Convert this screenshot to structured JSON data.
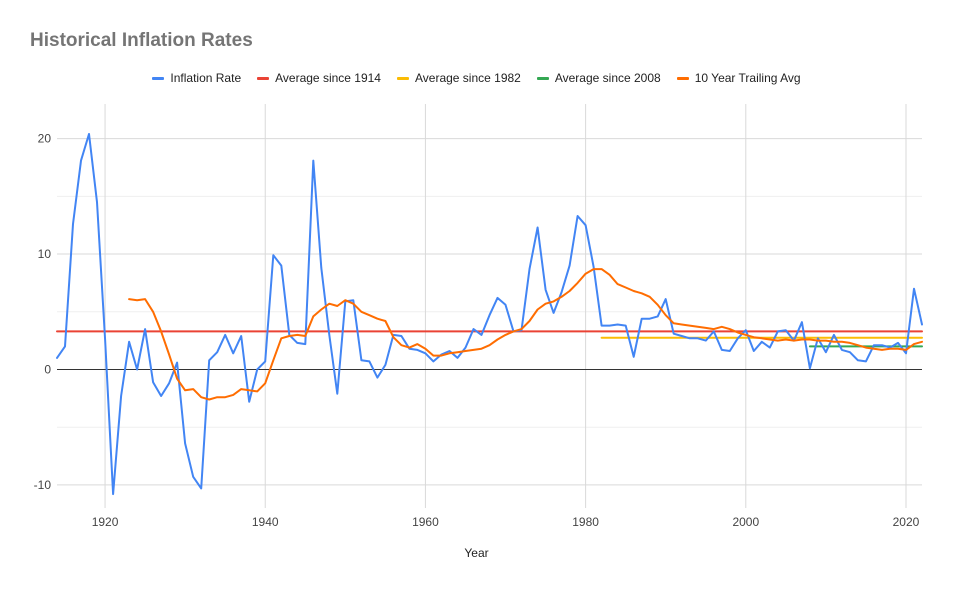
{
  "chart_data": {
    "type": "line",
    "title": "Historical Inflation Rates",
    "xlabel": "Year",
    "ylabel": "",
    "xlim": [
      1914,
      2022
    ],
    "ylim": [
      -12,
      23
    ],
    "x_ticks": [
      1920,
      1940,
      1960,
      1980,
      2000,
      2020
    ],
    "y_ticks": [
      -10,
      0,
      10,
      20
    ],
    "grid": true,
    "legend_position": "top",
    "series": [
      {
        "name": "Inflation Rate",
        "color": "#4285f4",
        "x": [
          1914,
          1915,
          1916,
          1917,
          1918,
          1919,
          1920,
          1921,
          1922,
          1923,
          1924,
          1925,
          1926,
          1927,
          1928,
          1929,
          1930,
          1931,
          1932,
          1933,
          1934,
          1935,
          1936,
          1937,
          1938,
          1939,
          1940,
          1941,
          1942,
          1943,
          1944,
          1945,
          1946,
          1947,
          1948,
          1949,
          1950,
          1951,
          1952,
          1953,
          1954,
          1955,
          1956,
          1957,
          1958,
          1959,
          1960,
          1961,
          1962,
          1963,
          1964,
          1965,
          1966,
          1967,
          1968,
          1969,
          1970,
          1971,
          1972,
          1973,
          1974,
          1975,
          1976,
          1977,
          1978,
          1979,
          1980,
          1981,
          1982,
          1983,
          1984,
          1985,
          1986,
          1987,
          1988,
          1989,
          1990,
          1991,
          1992,
          1993,
          1994,
          1995,
          1996,
          1997,
          1998,
          1999,
          2000,
          2001,
          2002,
          2003,
          2004,
          2005,
          2006,
          2007,
          2008,
          2009,
          2010,
          2011,
          2012,
          2013,
          2014,
          2015,
          2016,
          2017,
          2018,
          2019,
          2020,
          2021,
          2022
        ],
        "values": [
          1.0,
          2.0,
          12.6,
          18.1,
          20.4,
          14.5,
          2.6,
          -10.8,
          -2.3,
          2.4,
          0.0,
          3.5,
          -1.1,
          -2.3,
          -1.2,
          0.6,
          -6.4,
          -9.3,
          -10.3,
          0.8,
          1.5,
          3.0,
          1.4,
          2.9,
          -2.8,
          0.0,
          0.7,
          9.9,
          9.0,
          3.0,
          2.3,
          2.2,
          18.1,
          8.8,
          3.0,
          -2.1,
          5.9,
          6.0,
          0.8,
          0.7,
          -0.7,
          0.4,
          3.0,
          2.9,
          1.8,
          1.7,
          1.4,
          0.7,
          1.3,
          1.6,
          1.0,
          1.9,
          3.5,
          3.0,
          4.7,
          6.2,
          5.6,
          3.3,
          3.4,
          8.7,
          12.3,
          6.9,
          4.9,
          6.7,
          9.0,
          13.3,
          12.5,
          8.9,
          3.8,
          3.8,
          3.9,
          3.8,
          1.1,
          4.4,
          4.4,
          4.6,
          6.1,
          3.1,
          2.9,
          2.7,
          2.7,
          2.5,
          3.3,
          1.7,
          1.6,
          2.7,
          3.4,
          1.6,
          2.4,
          1.9,
          3.3,
          3.4,
          2.5,
          4.1,
          0.1,
          2.7,
          1.5,
          3.0,
          1.7,
          1.5,
          0.8,
          0.7,
          2.1,
          2.1,
          1.9,
          2.3,
          1.4,
          7.0,
          3.9
        ]
      },
      {
        "name": "Average since 1914",
        "color": "#ea4335",
        "x": [
          1914,
          2022
        ],
        "values": [
          3.3,
          3.3
        ]
      },
      {
        "name": "Average since 1982",
        "color": "#fbbc04",
        "x": [
          1982,
          2022
        ],
        "values": [
          2.75,
          2.75
        ]
      },
      {
        "name": "Average since 2008",
        "color": "#34a853",
        "x": [
          2008,
          2022
        ],
        "values": [
          2.0,
          2.0
        ]
      },
      {
        "name": "10 Year Trailing Avg",
        "color": "#ff6d01",
        "x": [
          1923,
          1924,
          1925,
          1926,
          1927,
          1928,
          1929,
          1930,
          1931,
          1932,
          1933,
          1934,
          1935,
          1936,
          1937,
          1938,
          1939,
          1940,
          1941,
          1942,
          1943,
          1944,
          1945,
          1946,
          1947,
          1948,
          1949,
          1950,
          1951,
          1952,
          1953,
          1954,
          1955,
          1956,
          1957,
          1958,
          1959,
          1960,
          1961,
          1962,
          1963,
          1964,
          1965,
          1966,
          1967,
          1968,
          1969,
          1970,
          1971,
          1972,
          1973,
          1974,
          1975,
          1976,
          1977,
          1978,
          1979,
          1980,
          1981,
          1982,
          1983,
          1984,
          1985,
          1986,
          1987,
          1988,
          1989,
          1990,
          1991,
          1992,
          1993,
          1994,
          1995,
          1996,
          1997,
          1998,
          1999,
          2000,
          2001,
          2002,
          2003,
          2004,
          2005,
          2006,
          2007,
          2008,
          2009,
          2010,
          2011,
          2012,
          2013,
          2014,
          2015,
          2016,
          2017,
          2018,
          2019,
          2020,
          2021,
          2022
        ],
        "values": [
          6.1,
          6.0,
          6.1,
          5.0,
          3.3,
          1.3,
          -0.8,
          -1.8,
          -1.7,
          -2.4,
          -2.6,
          -2.4,
          -2.4,
          -2.2,
          -1.7,
          -1.8,
          -1.9,
          -1.2,
          0.8,
          2.7,
          2.9,
          3.0,
          2.9,
          4.6,
          5.2,
          5.7,
          5.5,
          6.0,
          5.7,
          5.0,
          4.7,
          4.4,
          4.2,
          2.8,
          2.1,
          1.9,
          2.2,
          1.8,
          1.2,
          1.2,
          1.4,
          1.5,
          1.6,
          1.7,
          1.8,
          2.1,
          2.6,
          3.0,
          3.3,
          3.5,
          4.2,
          5.2,
          5.7,
          5.9,
          6.3,
          6.8,
          7.5,
          8.3,
          8.7,
          8.7,
          8.2,
          7.4,
          7.1,
          6.8,
          6.6,
          6.3,
          5.6,
          4.7,
          4.0,
          3.9,
          3.8,
          3.7,
          3.6,
          3.5,
          3.7,
          3.5,
          3.2,
          3.0,
          2.8,
          2.7,
          2.6,
          2.5,
          2.6,
          2.5,
          2.6,
          2.6,
          2.5,
          2.5,
          2.4,
          2.4,
          2.3,
          2.1,
          1.9,
          1.8,
          1.7,
          1.8,
          1.8,
          1.7,
          2.2,
          2.4
        ]
      }
    ]
  }
}
